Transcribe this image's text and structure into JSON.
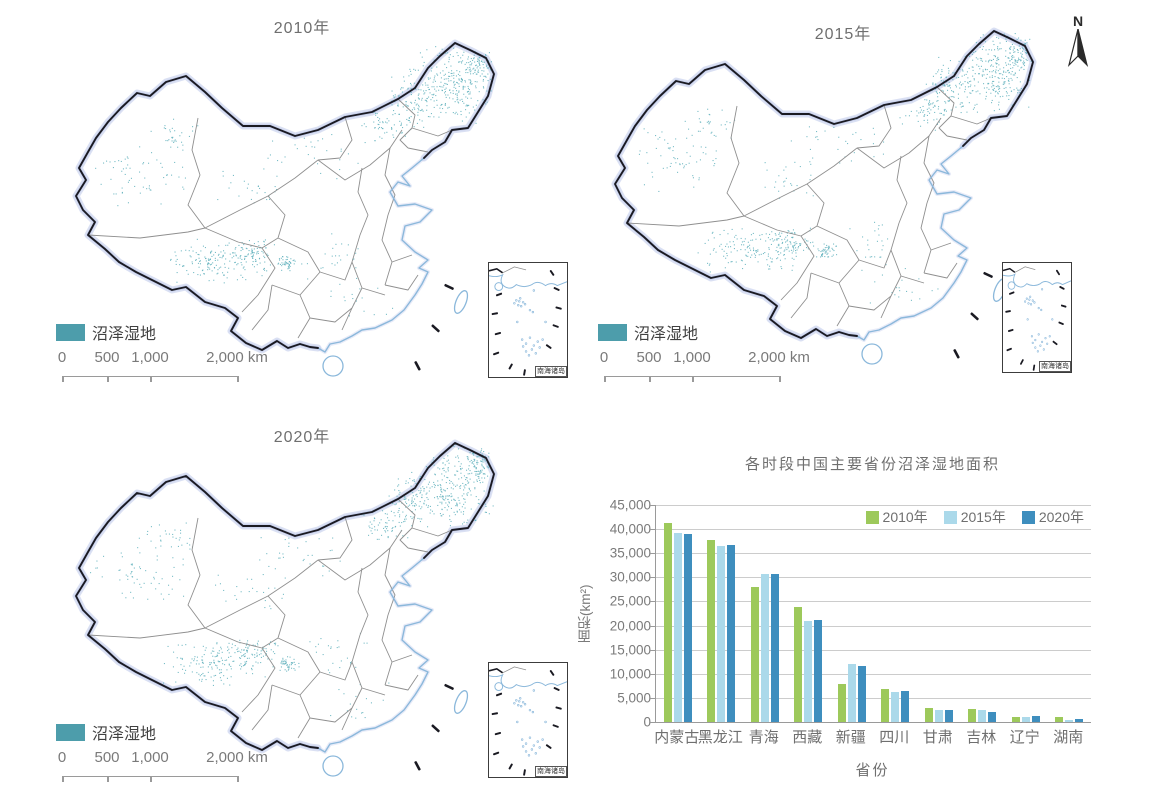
{
  "figure": {
    "map_legend_label": "沼泽湿地",
    "inset_label": "南海诸岛",
    "north_label": "N",
    "scalebar_labels": [
      "0",
      "500",
      "1,000",
      "2,000 km"
    ],
    "panels": [
      {
        "title": "2010年"
      },
      {
        "title": "2015年"
      },
      {
        "title": "2020年"
      }
    ]
  },
  "colors": {
    "wetland_swatch": "#4d9dab",
    "wetland_dot": "#62b1bd",
    "land_border": "#1a1a22",
    "border_glow": "#bcc6ea",
    "coastline": "#8bb8db",
    "province_line": "#8f8f8f",
    "grid_line": "#cccccc",
    "text": "#6f6f6f"
  },
  "chart_data": {
    "type": "bar",
    "title": "各时段中国主要省份沼泽湿地面积",
    "xlabel": "省份",
    "ylabel": "面积(km²)",
    "categories": [
      "内蒙古",
      "黑龙江",
      "青海",
      "西藏",
      "新疆",
      "四川",
      "甘肃",
      "吉林",
      "辽宁",
      "湖南"
    ],
    "series": [
      {
        "name": "2010年",
        "color": "#9dc95b",
        "values": [
          41300,
          37700,
          28000,
          23900,
          7800,
          6900,
          3000,
          2800,
          1100,
          1100
        ]
      },
      {
        "name": "2015年",
        "color": "#abd9ea",
        "values": [
          39300,
          36600,
          30700,
          21000,
          12000,
          6200,
          2400,
          2400,
          1100,
          400
        ]
      },
      {
        "name": "2020年",
        "color": "#3e8ebe",
        "values": [
          38900,
          36700,
          30600,
          21100,
          11600,
          6400,
          2400,
          2000,
          1300,
          700
        ]
      }
    ],
    "ylim": [
      0,
      45000
    ],
    "ytick_step": 5000,
    "ytick_labels": [
      "0",
      "5,000",
      "10,000",
      "15,000",
      "20,000",
      "25,000",
      "30,000",
      "35,000",
      "40,000",
      "45,000"
    ],
    "grid": true,
    "legend_position": "top-right"
  }
}
